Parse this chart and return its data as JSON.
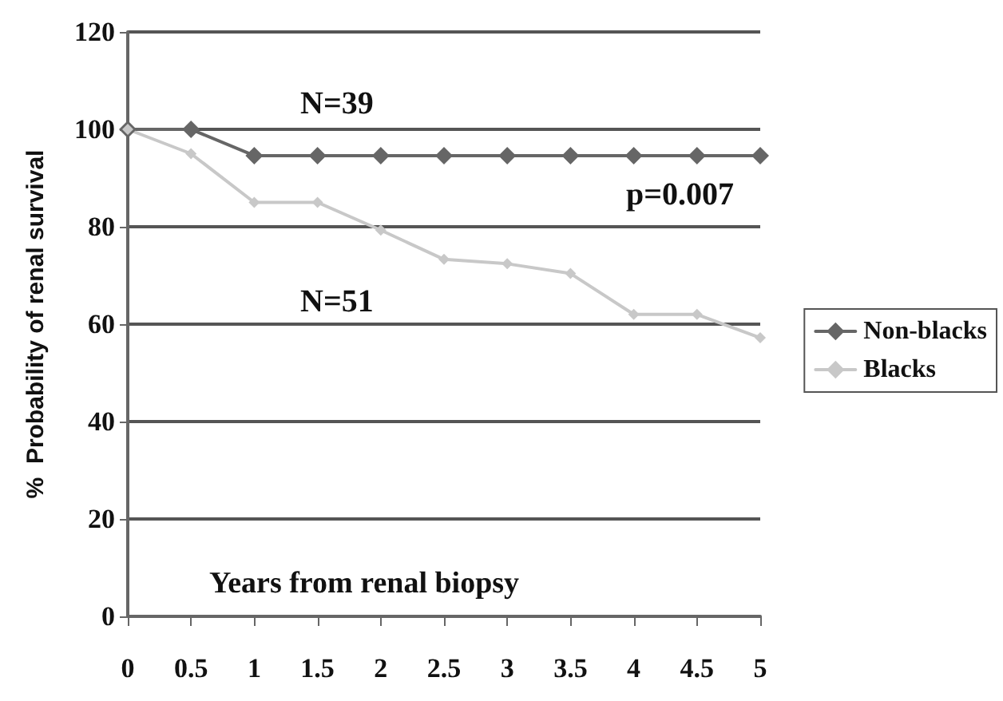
{
  "chart_data": {
    "type": "line",
    "ylabel": "%  Probability of renal survival",
    "xlabel": "Years from renal biopsy",
    "x": [
      0,
      0.5,
      1,
      1.5,
      2,
      2.5,
      3,
      3.5,
      4,
      4.5,
      5
    ],
    "series": [
      {
        "name": "Non-blacks",
        "color": "#666666",
        "values": [
          100,
          100,
          94.6,
          94.6,
          94.6,
          94.6,
          94.6,
          94.6,
          94.6,
          94.6,
          94.6
        ]
      },
      {
        "name": "Blacks",
        "color": "#c8c8c8",
        "values": [
          100,
          95,
          85,
          85,
          79.3,
          73.3,
          72.4,
          70.4,
          62,
          62,
          57.2
        ]
      }
    ],
    "annotations": [
      "N=39",
      "p=0.007",
      "N=51"
    ],
    "xlim": [
      0,
      5
    ],
    "xticks": [
      0,
      0.5,
      1,
      1.5,
      2,
      2.5,
      3,
      3.5,
      4,
      4.5,
      5
    ],
    "ylim": [
      0,
      120
    ],
    "yticks": [
      0,
      20,
      40,
      60,
      80,
      100,
      120
    ],
    "grid": "y",
    "legend": "right",
    "marker": "diamond",
    "line_style": "solid"
  }
}
